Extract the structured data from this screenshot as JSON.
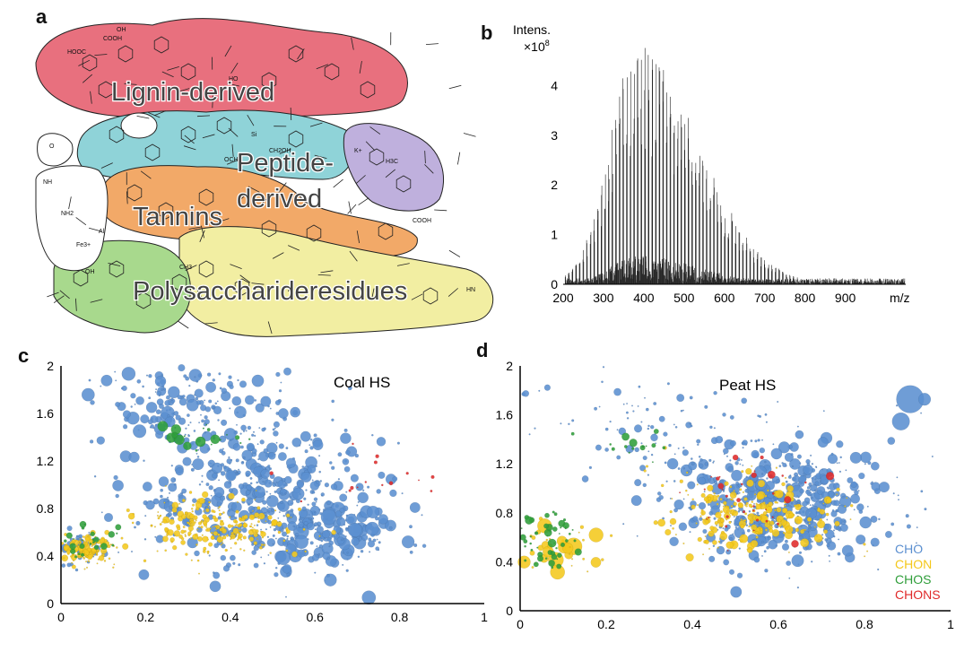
{
  "panels": {
    "a": {
      "label": "a",
      "regions": [
        {
          "name": "Lignin-derived",
          "color": "#e8707e"
        },
        {
          "name": "Peptide-derived",
          "color": "#8fd3d8"
        },
        {
          "name": "Tannins",
          "color": "#f2a968"
        },
        {
          "name": "Polysaccharideresidues",
          "color": "#f2eea2"
        },
        {
          "name": "",
          "color": "#bfb0dd"
        },
        {
          "name": "",
          "color": "#a8d98d"
        }
      ],
      "structure_text": [
        "HOOC",
        "COOH",
        "OH",
        "HO",
        "O",
        "NH",
        "NH2",
        "Fe3+",
        "Al",
        "Si",
        "CH2OH",
        "OCH3",
        "K+",
        "H3C",
        "CH3",
        "HN",
        "COOH",
        "OH"
      ]
    },
    "b": {
      "label": "b"
    },
    "c": {
      "label": "c"
    },
    "d": {
      "label": "d"
    }
  },
  "chart_data": [
    {
      "type": "bar",
      "panel": "b",
      "ylabel_line1": "Intens.",
      "ylabel_line2": "×10",
      "ylabel_exp": "8",
      "xlabel": "m/z",
      "xlim": [
        200,
        1050
      ],
      "ylim": [
        0,
        5.0
      ],
      "x_ticks": [
        "200",
        "300",
        "400",
        "500",
        "600",
        "700",
        "800",
        "900"
      ],
      "y_ticks": [
        "0",
        "1",
        "2",
        "3",
        "4"
      ],
      "envelope": {
        "peak_mz": 385,
        "peak_intensity": 4.8,
        "sigma_left": 70,
        "sigma_right": 150,
        "base": 0.12
      },
      "series": [
        {
          "values_description_mz": [
            200,
            1050
          ]
        }
      ]
    },
    {
      "type": "scatter",
      "panel": "c",
      "title": "Coal HS",
      "xlim": [
        0,
        1
      ],
      "ylim": [
        0,
        2
      ],
      "x_ticks": [
        "0",
        "0.2",
        "0.4",
        "0.6",
        "0.8",
        "1"
      ],
      "y_ticks": [
        "0",
        "0.4",
        "0.8",
        "1.2",
        "1.6",
        "2"
      ],
      "series": [
        {
          "name": "CHO",
          "color": "#5b8fd0",
          "clusters": [
            {
              "cx": 0.45,
              "cy": 1.0,
              "sx": 0.14,
              "sy": 0.35,
              "n": 520,
              "rmax": 6
            },
            {
              "cx": 0.62,
              "cy": 0.6,
              "sx": 0.08,
              "sy": 0.15,
              "n": 180,
              "rmax": 8
            },
            {
              "cx": 0.25,
              "cy": 1.7,
              "sx": 0.08,
              "sy": 0.15,
              "n": 120,
              "rmax": 7
            },
            {
              "cx": 0.05,
              "cy": 0.45,
              "sx": 0.03,
              "sy": 0.07,
              "n": 60,
              "rmax": 3
            }
          ]
        },
        {
          "name": "CHON",
          "color": "#f4c81c",
          "clusters": [
            {
              "cx": 0.36,
              "cy": 0.65,
              "sx": 0.1,
              "sy": 0.12,
              "n": 260,
              "rmax": 3
            },
            {
              "cx": 0.06,
              "cy": 0.45,
              "sx": 0.035,
              "sy": 0.06,
              "n": 140,
              "rmax": 3
            }
          ]
        },
        {
          "name": "CHOS",
          "color": "#2f9e3a",
          "clusters": [
            {
              "cx": 0.3,
              "cy": 1.4,
              "sx": 0.05,
              "sy": 0.08,
              "n": 20,
              "rmax": 5
            },
            {
              "cx": 0.07,
              "cy": 0.5,
              "sx": 0.04,
              "sy": 0.08,
              "n": 25,
              "rmax": 3
            }
          ]
        },
        {
          "name": "CHONS",
          "color": "#e02a2a",
          "clusters": [
            {
              "cx": 0.75,
              "cy": 1.0,
              "sx": 0.1,
              "sy": 0.15,
              "n": 15,
              "rmax": 2
            }
          ]
        }
      ]
    },
    {
      "type": "scatter",
      "panel": "d",
      "title": "Peat HS",
      "xlim": [
        0,
        1
      ],
      "ylim": [
        0,
        2
      ],
      "x_ticks": [
        "0",
        "0.2",
        "0.4",
        "0.6",
        "0.8",
        "1"
      ],
      "y_ticks": [
        "0",
        "0.4",
        "0.8",
        "1.2",
        "1.6",
        "2"
      ],
      "legend": [
        "CHO",
        "CHON",
        "CHOS",
        "CHONS"
      ],
      "series": [
        {
          "name": "CHO",
          "color": "#5b8fd0",
          "clusters": [
            {
              "cx": 0.6,
              "cy": 0.85,
              "sx": 0.12,
              "sy": 0.22,
              "n": 520,
              "rmax": 6
            },
            {
              "cx": 0.35,
              "cy": 1.4,
              "sx": 0.15,
              "sy": 0.25,
              "n": 120,
              "rmax": 4
            },
            {
              "cx": 0.9,
              "cy": 1.6,
              "sx": 0.025,
              "sy": 0.08,
              "n": 6,
              "rmax": 16
            }
          ]
        },
        {
          "name": "CHON",
          "color": "#f4c81c",
          "clusters": [
            {
              "cx": 0.55,
              "cy": 0.8,
              "sx": 0.1,
              "sy": 0.15,
              "n": 240,
              "rmax": 4
            },
            {
              "cx": 0.08,
              "cy": 0.5,
              "sx": 0.05,
              "sy": 0.1,
              "n": 45,
              "rmax": 9
            }
          ]
        },
        {
          "name": "CHOS",
          "color": "#2f9e3a",
          "clusters": [
            {
              "cx": 0.06,
              "cy": 0.6,
              "sx": 0.04,
              "sy": 0.12,
              "n": 60,
              "rmax": 4
            },
            {
              "cx": 0.25,
              "cy": 1.35,
              "sx": 0.06,
              "sy": 0.1,
              "n": 15,
              "rmax": 4
            }
          ]
        },
        {
          "name": "CHONS",
          "color": "#e02a2a",
          "clusters": [
            {
              "cx": 0.55,
              "cy": 0.9,
              "sx": 0.1,
              "sy": 0.18,
              "n": 35,
              "rmax": 4
            }
          ]
        }
      ]
    }
  ]
}
